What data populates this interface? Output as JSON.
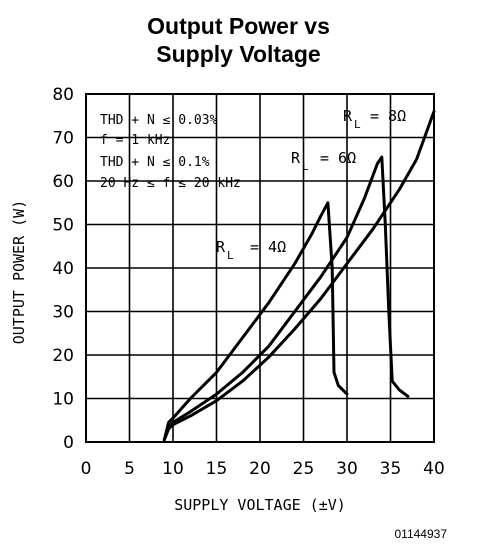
{
  "chart_data": {
    "type": "line",
    "title_lines": [
      "Output Power vs",
      "Supply Voltage"
    ],
    "xlabel": "SUPPLY VOLTAGE (±V)",
    "ylabel": "OUTPUT POWER (W)",
    "xlim": [
      0,
      40
    ],
    "ylim": [
      0,
      80
    ],
    "xticks": [
      0,
      5,
      10,
      15,
      20,
      25,
      30,
      35,
      40
    ],
    "yticks": [
      0,
      10,
      20,
      30,
      40,
      50,
      60,
      70,
      80
    ],
    "grid": true,
    "annotations": [
      "THD + N ≤ 0.03%",
      "f = 1 kHz",
      "THD + N ≤ 0.1%",
      "20 Hz ≤ f ≤ 20 kHz"
    ],
    "series": [
      {
        "name": "R",
        "sub": "L",
        "value": "= 4Ω",
        "points": [
          [
            9.0,
            0.5
          ],
          [
            9.5,
            4.5
          ],
          [
            10,
            5.5
          ],
          [
            12,
            10
          ],
          [
            15,
            16
          ],
          [
            18,
            24
          ],
          [
            21,
            32
          ],
          [
            24,
            41
          ],
          [
            26,
            48
          ],
          [
            27,
            52
          ],
          [
            27.8,
            55
          ],
          [
            28.3,
            40
          ],
          [
            28.5,
            16
          ],
          [
            29,
            13
          ],
          [
            30,
            11
          ]
        ]
      },
      {
        "name": "R",
        "sub": "L",
        "value": "= 6Ω",
        "points": [
          [
            9.0,
            0.5
          ],
          [
            9.5,
            3.5
          ],
          [
            10,
            4.5
          ],
          [
            12,
            7
          ],
          [
            15,
            11
          ],
          [
            18,
            16
          ],
          [
            21,
            22
          ],
          [
            24,
            30
          ],
          [
            27,
            38
          ],
          [
            30,
            47
          ],
          [
            32,
            56
          ],
          [
            33.5,
            64
          ],
          [
            34,
            65.5
          ],
          [
            34.4,
            50
          ],
          [
            34.8,
            30
          ],
          [
            35.2,
            14
          ],
          [
            36,
            12
          ],
          [
            37,
            10.5
          ]
        ]
      },
      {
        "name": "R",
        "sub": "L",
        "value": "= 8Ω",
        "points": [
          [
            9.0,
            0.5
          ],
          [
            9.5,
            3
          ],
          [
            10,
            4
          ],
          [
            12,
            6
          ],
          [
            15,
            9.5
          ],
          [
            18,
            14
          ],
          [
            21,
            19.5
          ],
          [
            24,
            26
          ],
          [
            27,
            33
          ],
          [
            30,
            41
          ],
          [
            33,
            49
          ],
          [
            36,
            58
          ],
          [
            38,
            65
          ],
          [
            40,
            76
          ]
        ]
      }
    ]
  },
  "document_number": "01144937",
  "line_color": "#000000",
  "grid_color": "#000000"
}
